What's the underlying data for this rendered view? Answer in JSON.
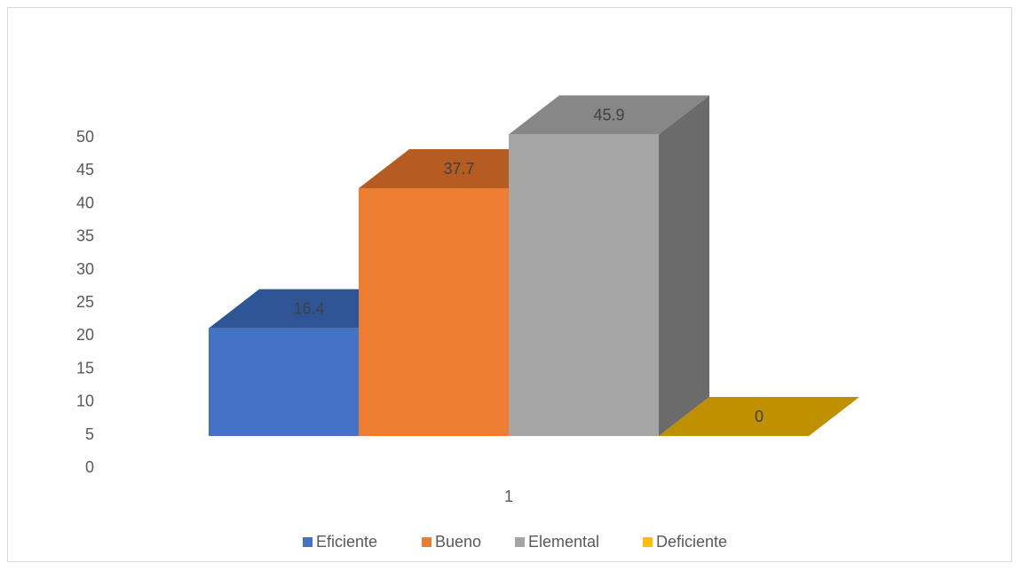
{
  "chart_data": {
    "type": "bar",
    "variant": "3d-clustered-column",
    "categories": [
      "1"
    ],
    "series": [
      {
        "name": "Eficiente",
        "values": [
          16.4
        ],
        "color": "#4472c4",
        "top_color": "#2f5597",
        "side_color": "#2e4f8d"
      },
      {
        "name": "Bueno",
        "values": [
          37.7
        ],
        "color": "#ed7d31",
        "top_color": "#b45c22",
        "side_color": "#a9541f"
      },
      {
        "name": "Elemental",
        "values": [
          45.9
        ],
        "color": "#a5a5a5",
        "top_color": "#878787",
        "side_color": "#6b6b6b"
      },
      {
        "name": "Deficiente",
        "values": [
          0
        ],
        "color": "#ffc000",
        "top_color": "#bf9000",
        "side_color": "#a07a00"
      }
    ],
    "ylim": [
      0,
      50
    ],
    "yticks": [
      "0",
      "5",
      "10",
      "15",
      "20",
      "25",
      "30",
      "35",
      "40",
      "45",
      "50"
    ],
    "grid": false,
    "legend_position": "bottom",
    "data_labels": [
      "16.4",
      "37.7",
      "45.9",
      "0"
    ]
  }
}
